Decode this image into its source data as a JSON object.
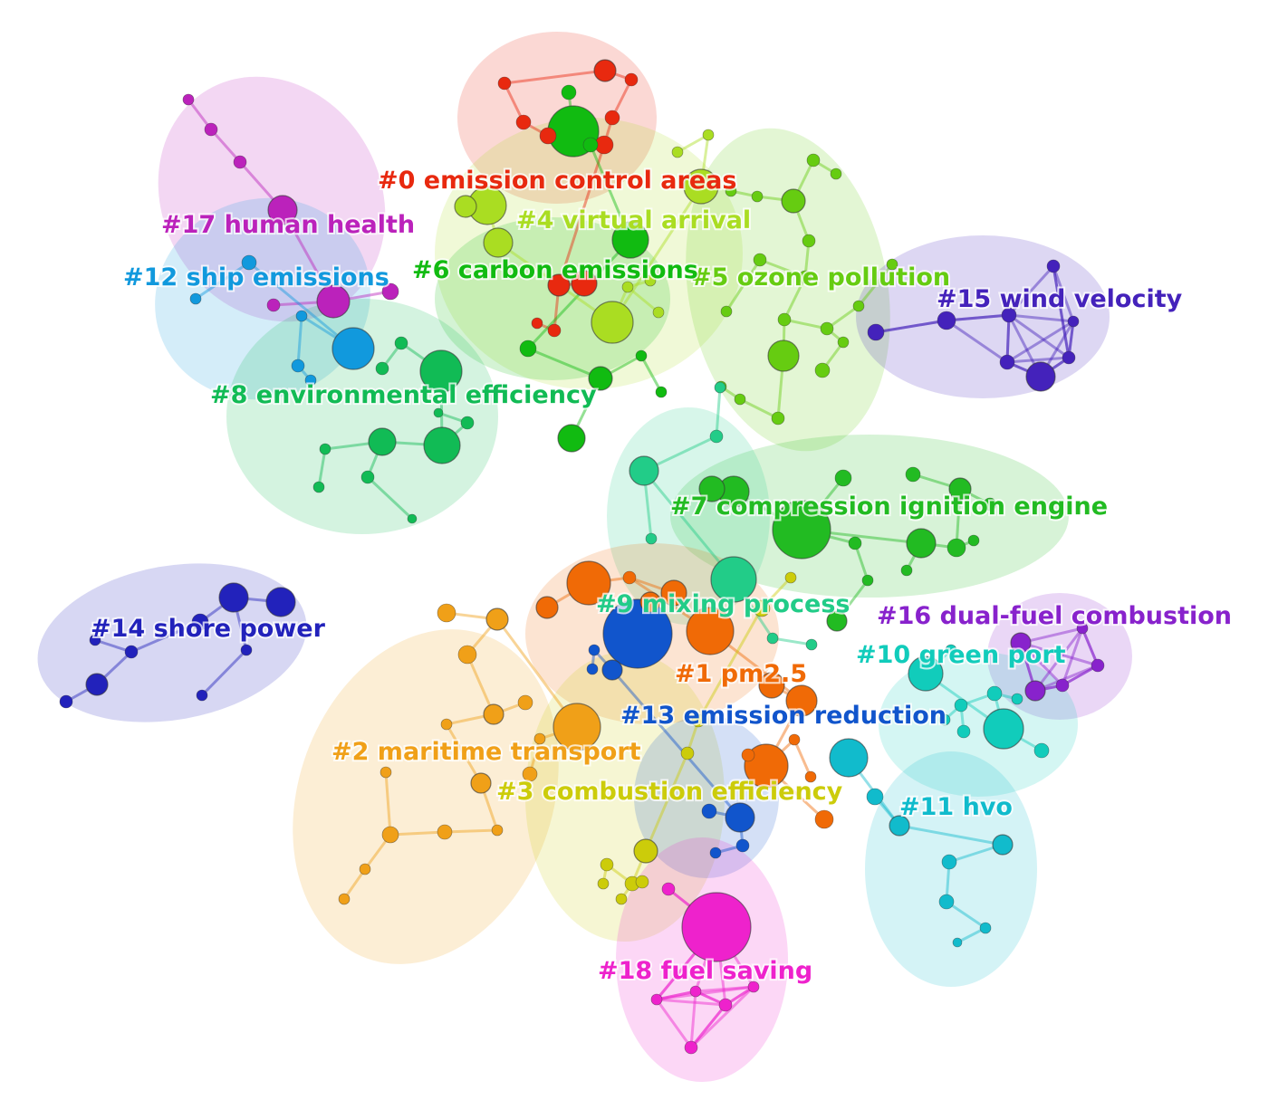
{
  "clusters": [
    {
      "id": "c0",
      "label": "#0 emission control areas",
      "color": "#e8290f"
    },
    {
      "id": "c1",
      "label": "#1 pm2.5",
      "color": "#f06a06"
    },
    {
      "id": "c2",
      "label": "#2 maritime transport",
      "color": "#f0a018"
    },
    {
      "id": "c3",
      "label": "#3 combustion efficiency",
      "color": "#cccc0a"
    },
    {
      "id": "c4",
      "label": "#4 virtual arrival",
      "color": "#aadd22"
    },
    {
      "id": "c5",
      "label": "#5 ozone pollution",
      "color": "#66cc11"
    },
    {
      "id": "c6",
      "label": "#6 carbon emissions",
      "color": "#11bb11"
    },
    {
      "id": "c7",
      "label": "#7 compression ignition engine",
      "color": "#22bb22"
    },
    {
      "id": "c8",
      "label": "#8 environmental efficiency",
      "color": "#11bb55"
    },
    {
      "id": "c9",
      "label": "#9 mixing process",
      "color": "#22cc88"
    },
    {
      "id": "c10",
      "label": "#10 green port",
      "color": "#11ccbb"
    },
    {
      "id": "c11",
      "label": "#11 hvo",
      "color": "#11bbcc"
    },
    {
      "id": "c12",
      "label": "#12 ship emissions",
      "color": "#1199dd"
    },
    {
      "id": "c13",
      "label": "#13 emission reduction",
      "color": "#1155cc"
    },
    {
      "id": "c14",
      "label": "#14 shore power",
      "color": "#2222bb"
    },
    {
      "id": "c15",
      "label": "#15 wind velocity",
      "color": "#4422bb"
    },
    {
      "id": "c16",
      "label": "#16 dual-fuel combustion",
      "color": "#8822cc"
    },
    {
      "id": "c17",
      "label": "#17 human health",
      "color": "#bb22bb"
    },
    {
      "id": "c18",
      "label": "#18 fuel saving",
      "color": "#ee22cc"
    }
  ]
}
